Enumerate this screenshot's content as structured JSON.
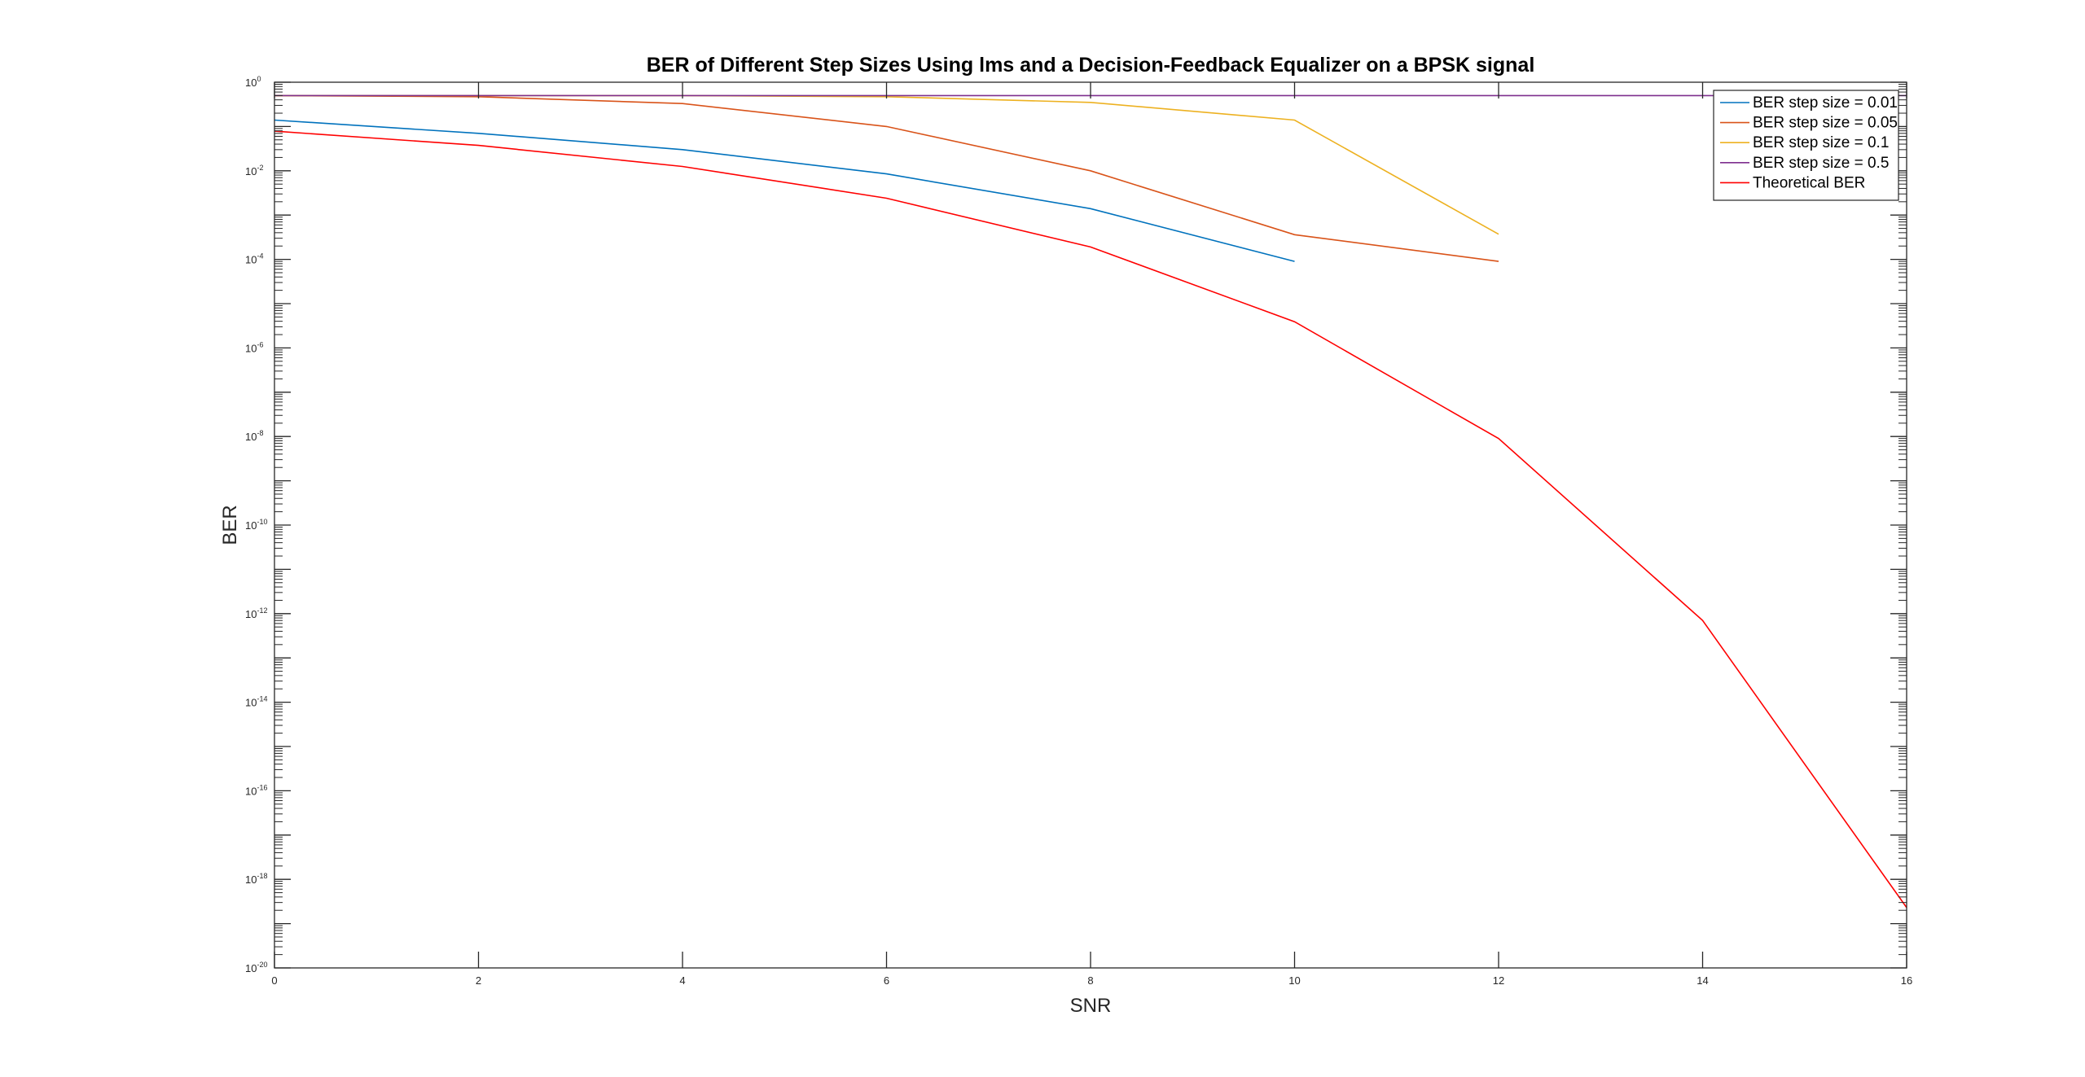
{
  "chart_data": {
    "type": "line",
    "title": "BER of Different Step Sizes Using lms and a Decision-Feedback Equalizer on a BPSK signal",
    "xlabel": "SNR",
    "ylabel": "BER",
    "xlim": [
      0,
      16
    ],
    "ylim": [
      1e-20,
      1
    ],
    "yscale": "log",
    "grid": false,
    "legend_position": "top-right",
    "x_ticks": [
      "0",
      "2",
      "4",
      "6",
      "8",
      "10",
      "12",
      "14",
      "16"
    ],
    "y_tick_base": "10",
    "y_tick_exponents": [
      "0",
      "-2",
      "-4",
      "-6",
      "-8",
      "-10",
      "-12",
      "-14",
      "-16",
      "-18",
      "-20"
    ],
    "series": [
      {
        "name": "BER step size = 0.01",
        "color": "#0072BD",
        "x": [
          0,
          2,
          4,
          6,
          8,
          10
        ],
        "y": [
          0.14,
          0.07,
          0.03,
          0.0085,
          0.0014,
          9e-05
        ]
      },
      {
        "name": "BER step size = 0.05",
        "color": "#D95319",
        "x": [
          0,
          2,
          4,
          6,
          8,
          10,
          12
        ],
        "y": [
          0.5,
          0.47,
          0.33,
          0.1,
          0.01,
          0.00036,
          9e-05
        ]
      },
      {
        "name": "BER step size = 0.1",
        "color": "#EDB120",
        "x": [
          0,
          2,
          4,
          6,
          8,
          10,
          12
        ],
        "y": [
          0.5,
          0.5,
          0.5,
          0.47,
          0.35,
          0.14,
          0.00037
        ]
      },
      {
        "name": "BER step size = 0.5",
        "color": "#7E2F8E",
        "x": [
          0,
          2,
          4,
          6,
          8,
          10,
          12,
          14,
          16
        ],
        "y": [
          0.5,
          0.5,
          0.5,
          0.5,
          0.5,
          0.5,
          0.5,
          0.5,
          0.5
        ]
      },
      {
        "name": "Theoretical BER",
        "color": "#FF0000",
        "x": [
          0,
          2,
          4,
          6,
          8,
          10,
          12,
          14,
          16
        ],
        "y": [
          0.0786,
          0.0375,
          0.0125,
          0.0024,
          0.00019,
          3.9e-06,
          9e-09,
          7e-13,
          2.3e-19
        ]
      }
    ]
  }
}
